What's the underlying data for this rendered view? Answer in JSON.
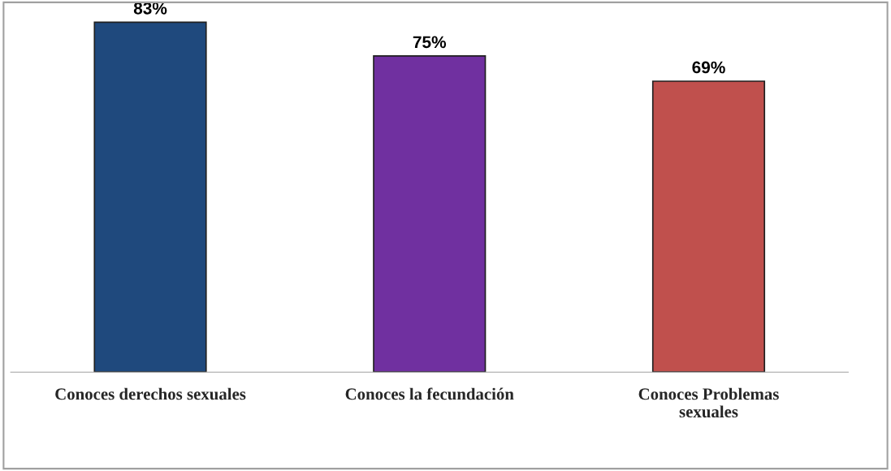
{
  "chart_data": {
    "type": "bar",
    "categories": [
      "Conoces derechos sexuales",
      "Conoces la fecundación",
      "Conoces Problemas sexuales"
    ],
    "values": [
      83,
      75,
      69
    ],
    "colors": [
      "#1f497d",
      "#7030a0",
      "#c0504d"
    ],
    "value_labels": [
      "83%",
      "75%",
      "69%"
    ],
    "grid": false,
    "legend": false
  }
}
